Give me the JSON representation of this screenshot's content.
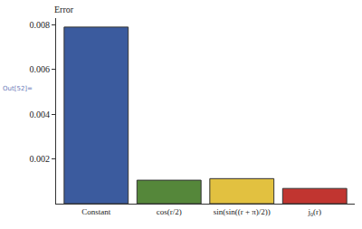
{
  "chart_data": {
    "type": "bar",
    "y_label": "Error",
    "annotations": [
      "Out[52]="
    ],
    "categories": [
      "Constant",
      "cos(r/2)",
      "sin(sin((r + π)/2))",
      "j₀(r)"
    ],
    "values": [
      0.0079,
      0.00105,
      0.00112,
      0.00068
    ],
    "colors": [
      "#3b5b9e",
      "#55873a",
      "#e2c140",
      "#c13530"
    ],
    "ylim": [
      0,
      0.0083
    ],
    "yticks": [
      0.002,
      0.004,
      0.006,
      0.008
    ],
    "grid": false
  }
}
